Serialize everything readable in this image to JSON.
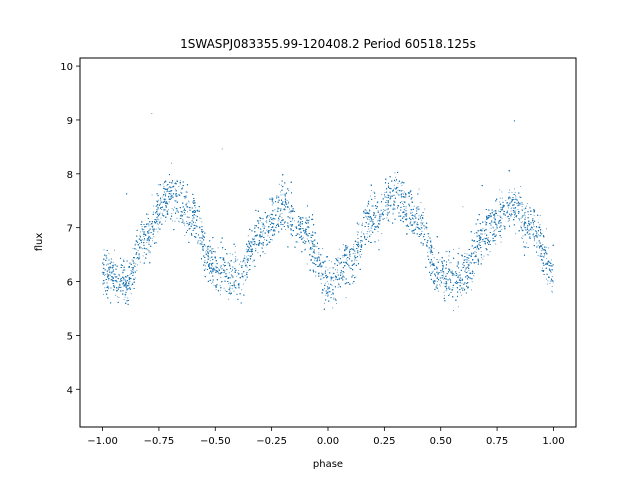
{
  "chart_data": {
    "type": "scatter",
    "title": "1SWASPJ083355.99-120408.2 Period 60518.125s",
    "xlabel": "phase",
    "ylabel": "flux",
    "xlim": [
      -1.1,
      1.1
    ],
    "ylim": [
      3.3,
      10.15
    ],
    "xticks": [
      "−1.00",
      "−0.75",
      "−0.50",
      "−0.25",
      "0.00",
      "0.25",
      "0.50",
      "0.75",
      "1.00"
    ],
    "yticks": [
      "4",
      "5",
      "6",
      "7",
      "8",
      "9",
      "10"
    ],
    "grid": false,
    "legend": "none",
    "marker_color": "#1f77b4",
    "series": [
      {
        "x_range": [
          -1.0,
          1.0
        ],
        "trend": {
          "x": [
            -1.0,
            -0.9,
            -0.8,
            -0.7,
            -0.6,
            -0.5,
            -0.4,
            -0.3,
            -0.2,
            -0.1,
            0.0,
            0.1,
            0.2,
            0.3,
            0.4,
            0.5,
            0.6,
            0.7,
            0.8,
            0.9,
            1.0
          ],
          "y": [
            6.2,
            5.95,
            6.9,
            7.6,
            7.2,
            6.2,
            6.1,
            6.9,
            7.4,
            6.9,
            5.95,
            6.4,
            7.2,
            7.6,
            7.1,
            6.1,
            6.1,
            6.9,
            7.4,
            7.1,
            6.2
          ]
        },
        "scatter_width": 0.22,
        "n_points": 14000
      }
    ]
  }
}
